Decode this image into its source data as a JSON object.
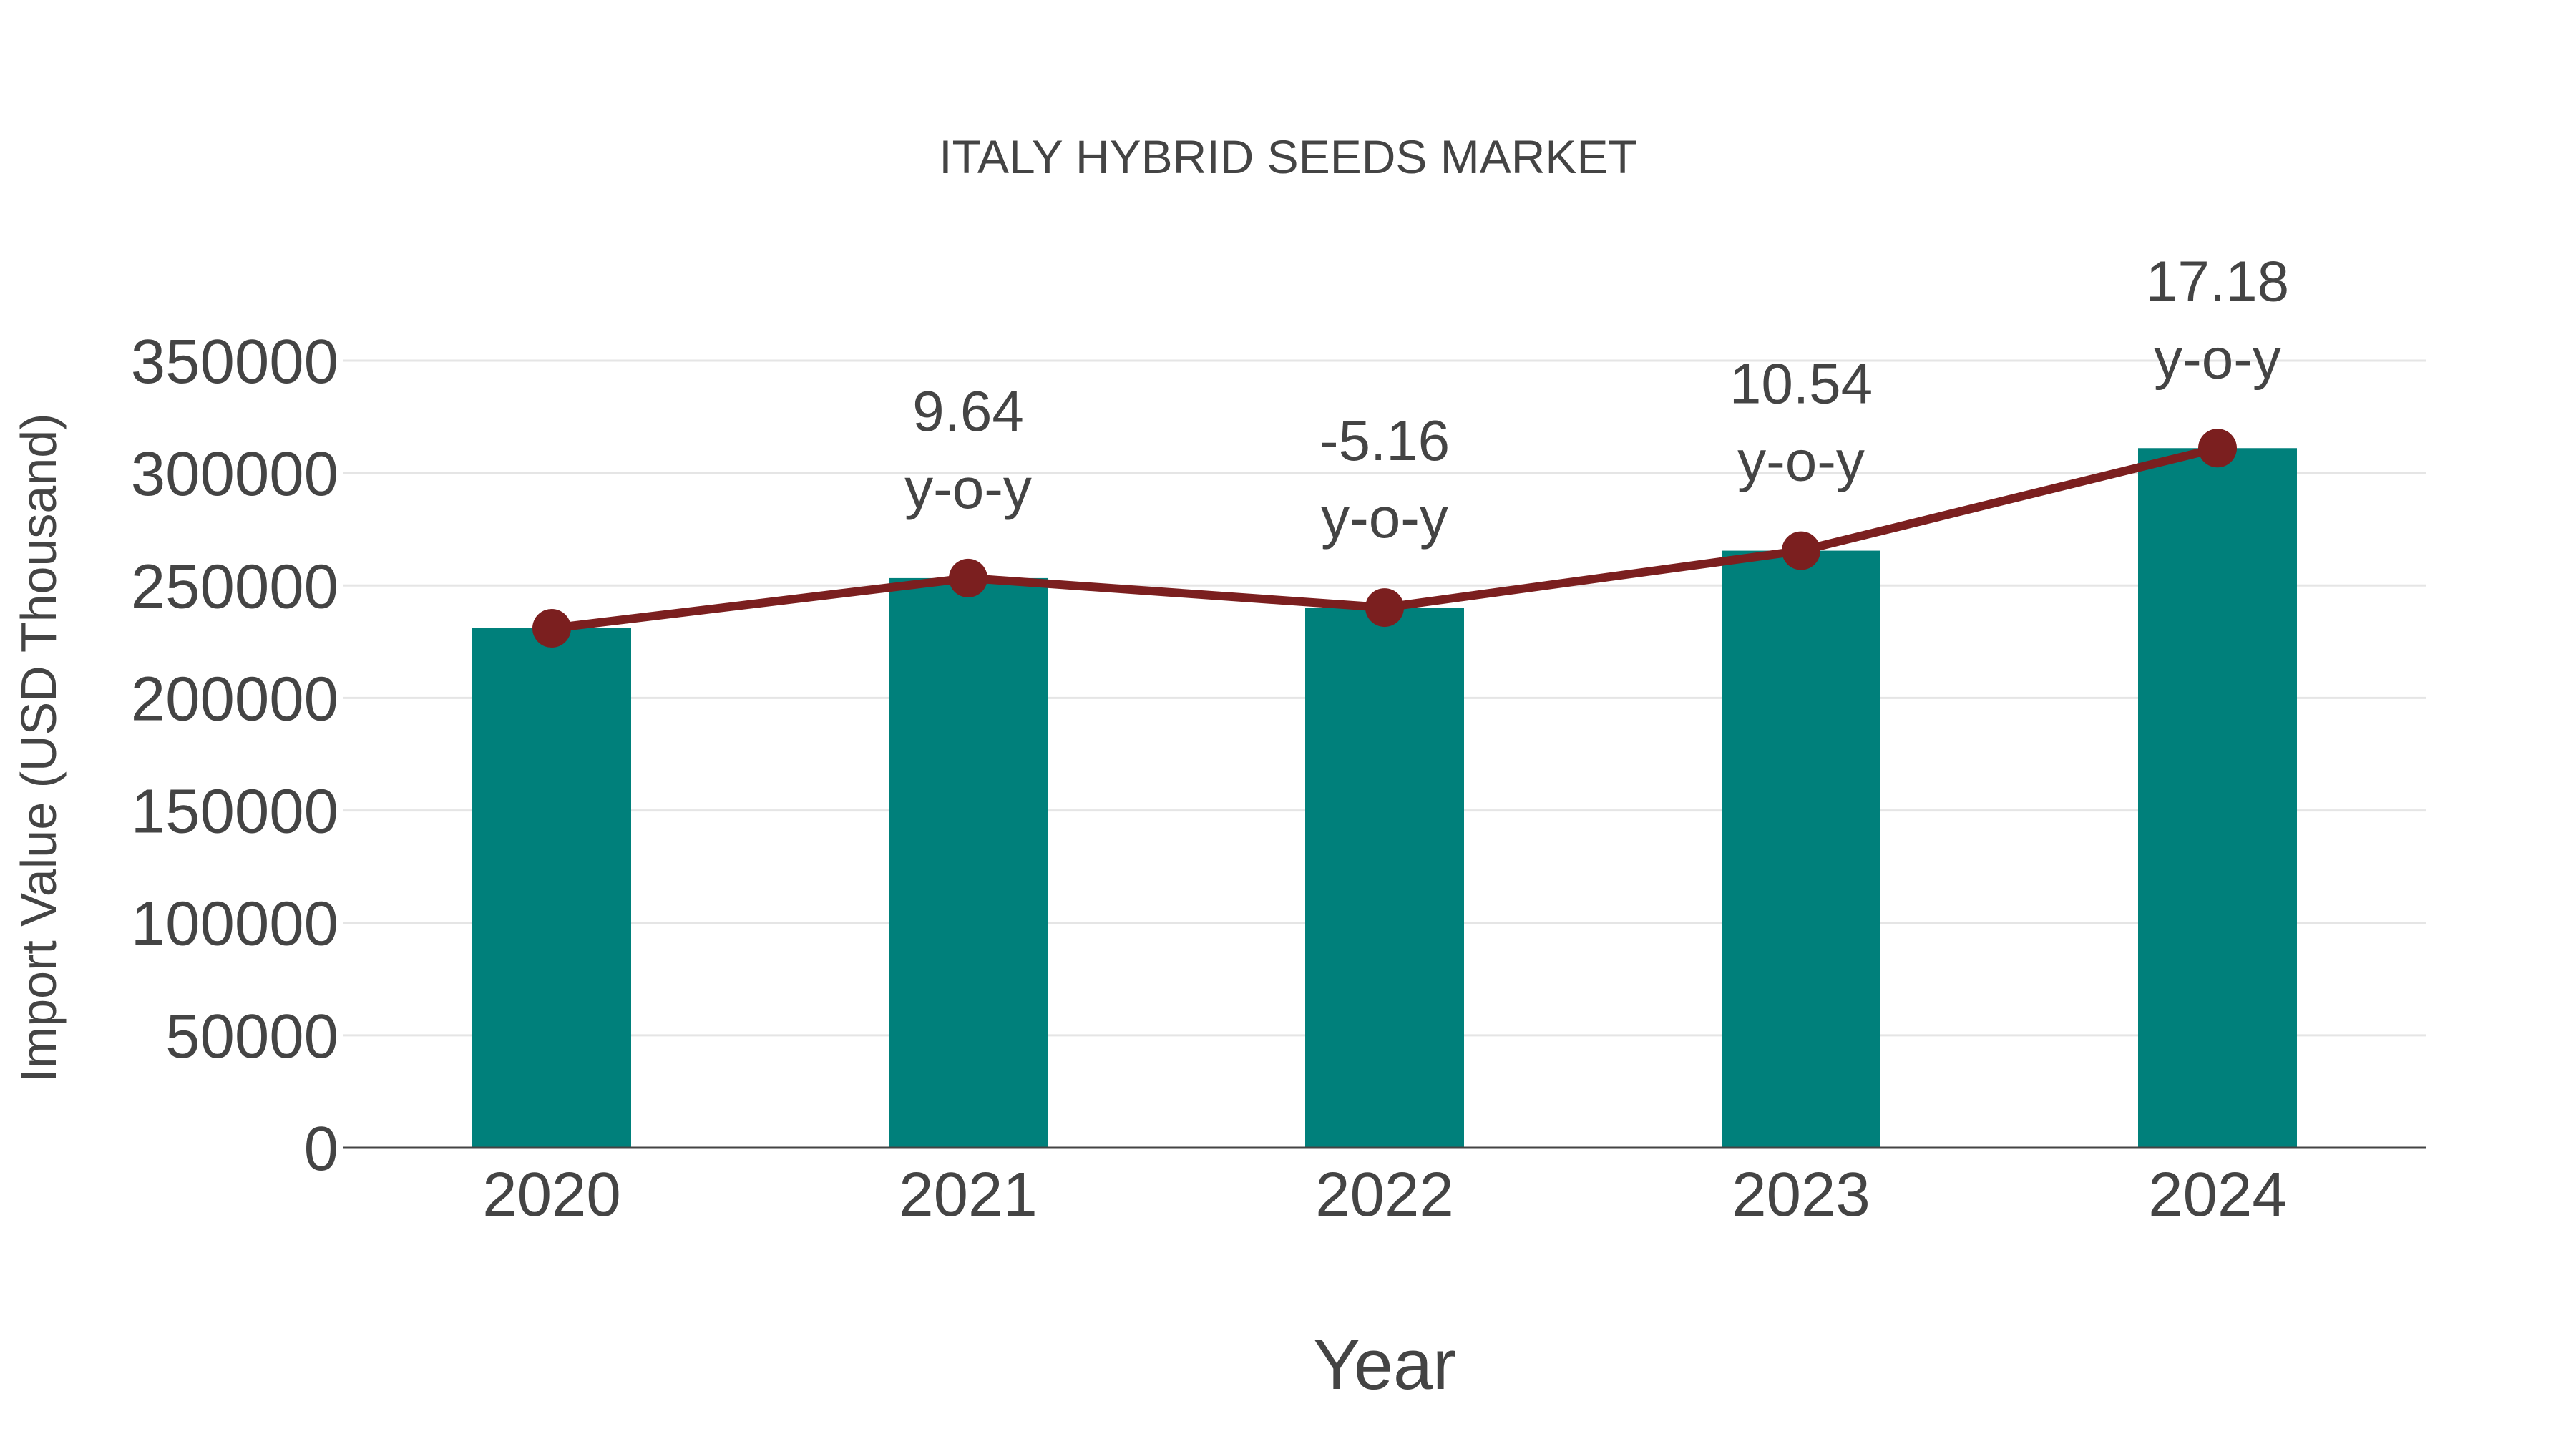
{
  "chart_data": {
    "type": "bar",
    "title": "ITALY HYBRID SEEDS MARKET",
    "xlabel": "Year",
    "ylabel": "Import Value (USD Thousand)",
    "categories": [
      "2020",
      "2021",
      "2022",
      "2023",
      "2024"
    ],
    "series": [
      {
        "name": "Import Value",
        "type": "bar",
        "color": "#00807B",
        "values": [
          231000,
          253300,
          240200,
          265500,
          311100
        ]
      },
      {
        "name": "Import Value (trend)",
        "type": "line",
        "color": "#7B1F1F",
        "values": [
          231000,
          253300,
          240200,
          265500,
          311100
        ]
      }
    ],
    "annotations": [
      {
        "category": "2021",
        "value": "9.64",
        "label": "y-o-y"
      },
      {
        "category": "2022",
        "value": "-5.16",
        "label": "y-o-y"
      },
      {
        "category": "2023",
        "value": "10.54",
        "label": "y-o-y"
      },
      {
        "category": "2024",
        "value": "17.18",
        "label": "y-o-y"
      }
    ],
    "ylim": [
      0,
      350000
    ],
    "yticks": [
      "0",
      "50000",
      "100000",
      "150000",
      "200000",
      "250000",
      "300000",
      "350000"
    ],
    "grid": true,
    "legend": "none"
  }
}
